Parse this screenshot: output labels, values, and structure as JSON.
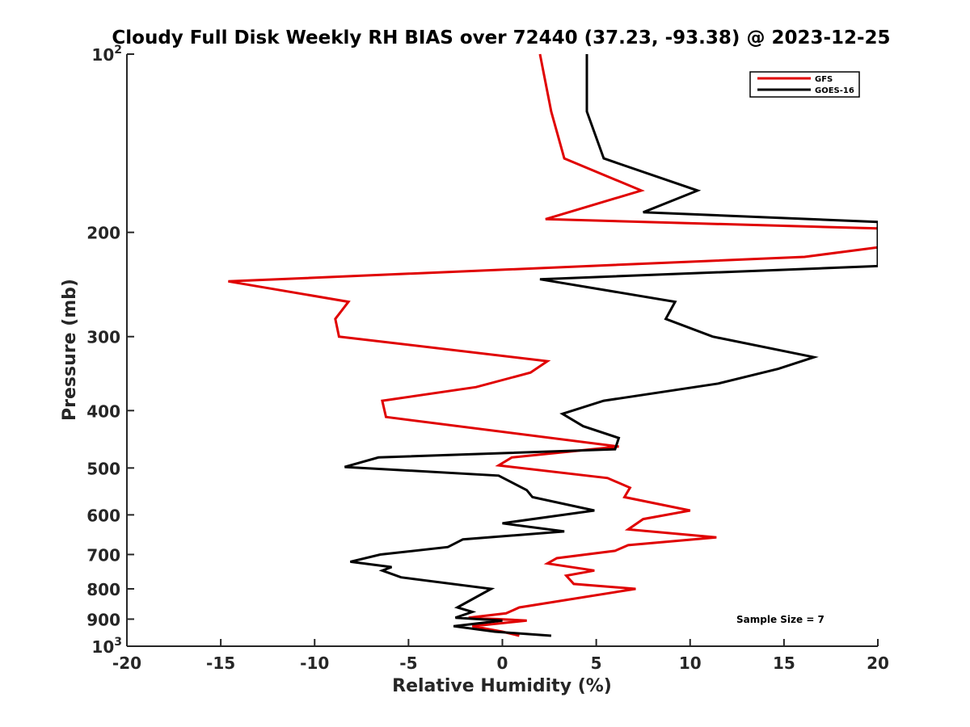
{
  "chart_data": {
    "type": "line",
    "title": "Cloudy Full Disk Weekly RH BIAS over 72440 (37.23, -93.38) @ 2023-12-25",
    "xlabel": "Relative Humidity (%)",
    "ylabel": "Pressure (mb)",
    "xlim": [
      -20,
      20
    ],
    "ylim": [
      100,
      1000
    ],
    "yscale": "log",
    "y_reversed": true,
    "xticks": [
      -20,
      -15,
      -10,
      -5,
      0,
      5,
      10,
      15,
      20
    ],
    "xtick_labels": [
      "-20",
      "-15",
      "-10",
      "-5",
      "0",
      "5",
      "10",
      "15",
      "20"
    ],
    "yticks": [
      {
        "value": 100,
        "base": "10",
        "exp": "2"
      },
      {
        "value": 200,
        "base": "200",
        "exp": ""
      },
      {
        "value": 300,
        "base": "300",
        "exp": ""
      },
      {
        "value": 400,
        "base": "400",
        "exp": ""
      },
      {
        "value": 500,
        "base": "500",
        "exp": ""
      },
      {
        "value": 600,
        "base": "600",
        "exp": ""
      },
      {
        "value": 700,
        "base": "700",
        "exp": ""
      },
      {
        "value": 800,
        "base": "800",
        "exp": ""
      },
      {
        "value": 900,
        "base": "900",
        "exp": ""
      },
      {
        "value": 1000,
        "base": "10",
        "exp": "3"
      }
    ],
    "grid": false,
    "legend_position": "top-right",
    "annotation": "Sample Size = 7",
    "series": [
      {
        "name": "GFS",
        "color": "#e00000",
        "points": [
          [
            2.0,
            100
          ],
          [
            2.6,
            125
          ],
          [
            3.3,
            150
          ],
          [
            7.4,
            170
          ],
          [
            2.3,
            190
          ],
          [
            20.0,
            197
          ],
          [
            20.0,
            212
          ],
          [
            16.1,
            220
          ],
          [
            -14.6,
            242
          ],
          [
            -8.2,
            262
          ],
          [
            -8.9,
            280
          ],
          [
            -8.7,
            300
          ],
          [
            2.4,
            330
          ],
          [
            1.5,
            345
          ],
          [
            -1.4,
            365
          ],
          [
            -6.4,
            385
          ],
          [
            -6.2,
            410
          ],
          [
            6.2,
            460
          ],
          [
            0.5,
            480
          ],
          [
            -0.2,
            495
          ],
          [
            5.6,
            520
          ],
          [
            6.8,
            540
          ],
          [
            6.5,
            560
          ],
          [
            10.0,
            590
          ],
          [
            7.5,
            610
          ],
          [
            6.7,
            635
          ],
          [
            11.4,
            655
          ],
          [
            6.7,
            675
          ],
          [
            6.0,
            690
          ],
          [
            2.9,
            710
          ],
          [
            2.4,
            725
          ],
          [
            4.9,
            745
          ],
          [
            3.4,
            760
          ],
          [
            3.8,
            785
          ],
          [
            7.1,
            800
          ],
          [
            0.9,
            860
          ],
          [
            0.2,
            880
          ],
          [
            -1.8,
            895
          ],
          [
            1.3,
            905
          ],
          [
            -1.6,
            925
          ],
          [
            0.0,
            945
          ],
          [
            0.9,
            960
          ]
        ]
      },
      {
        "name": "GOES-16",
        "color": "#000000",
        "points": [
          [
            4.5,
            100
          ],
          [
            4.5,
            125
          ],
          [
            5.4,
            150
          ],
          [
            10.4,
            170
          ],
          [
            7.5,
            185
          ],
          [
            20.0,
            192
          ],
          [
            20.0,
            228
          ],
          [
            2.0,
            240
          ],
          [
            9.2,
            262
          ],
          [
            8.7,
            280
          ],
          [
            11.2,
            300
          ],
          [
            16.6,
            325
          ],
          [
            14.7,
            340
          ],
          [
            11.5,
            360
          ],
          [
            5.4,
            385
          ],
          [
            3.2,
            405
          ],
          [
            4.3,
            425
          ],
          [
            6.2,
            445
          ],
          [
            6.0,
            465
          ],
          [
            -6.6,
            480
          ],
          [
            -8.4,
            498
          ],
          [
            -0.2,
            515
          ],
          [
            1.3,
            545
          ],
          [
            1.6,
            560
          ],
          [
            4.9,
            590
          ],
          [
            0.0,
            620
          ],
          [
            3.3,
            640
          ],
          [
            -2.1,
            660
          ],
          [
            -2.9,
            680
          ],
          [
            -6.5,
            700
          ],
          [
            -8.1,
            720
          ],
          [
            -5.9,
            735
          ],
          [
            -6.4,
            745
          ],
          [
            -5.4,
            765
          ],
          [
            -0.6,
            800
          ],
          [
            -2.4,
            860
          ],
          [
            -1.6,
            875
          ],
          [
            -2.5,
            895
          ],
          [
            0.0,
            905
          ],
          [
            -2.6,
            925
          ],
          [
            -0.4,
            945
          ],
          [
            2.6,
            960
          ]
        ]
      }
    ]
  }
}
